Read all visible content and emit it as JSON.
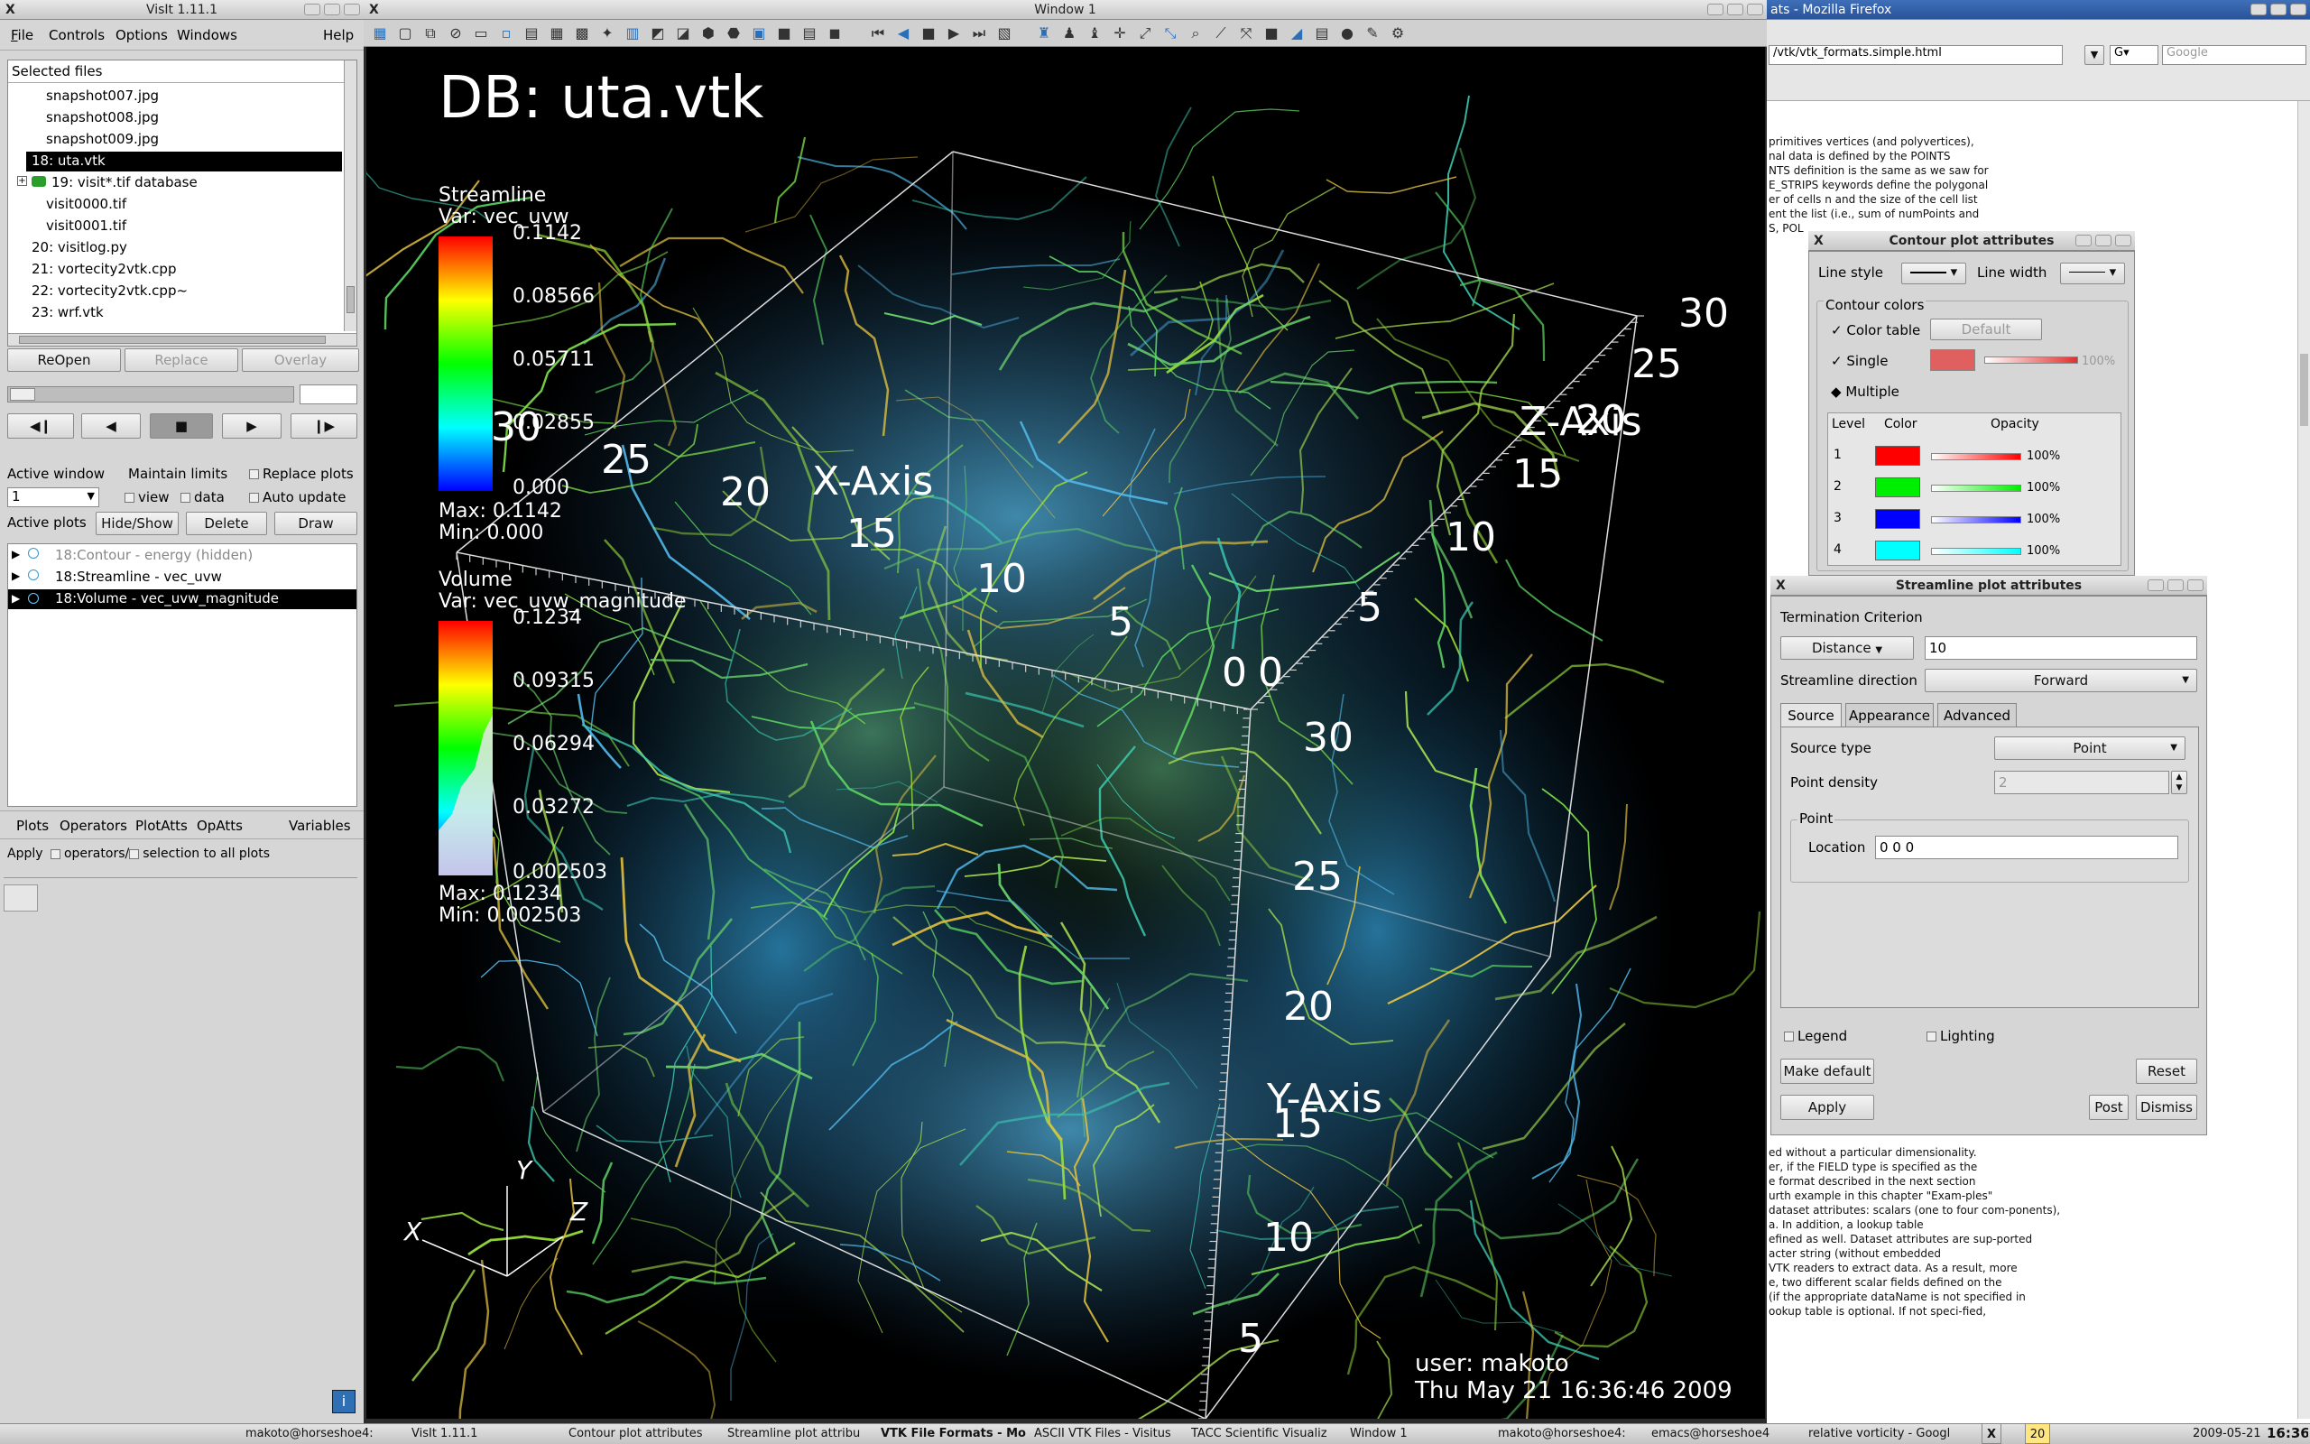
{
  "visit_main": {
    "title": "VisIt 1.11.1",
    "menu": [
      "File",
      "Controls",
      "Options",
      "Windows",
      "Help"
    ],
    "selected_files_label": "Selected files",
    "files": [
      "snapshot007.jpg",
      "snapshot008.jpg",
      "snapshot009.jpg",
      "18: uta.vtk",
      "19: visit*.tif database",
      "visit0000.tif",
      "visit0001.tif",
      "20: visitlog.py",
      "21: vortecity2vtk.cpp",
      "22: vortecity2vtk.cpp~",
      "23: wrf.vtk"
    ],
    "buttons": {
      "reopen": "ReOpen",
      "replace": "Replace",
      "overlay": "Overlay"
    },
    "active_window_label": "Active window",
    "active_window_value": "1",
    "maintain_limits": "Maintain limits",
    "view": "view",
    "data": "data",
    "replace_plots": "Replace plots",
    "auto_update": "Auto update",
    "active_plots_label": "Active plots",
    "hide_show": "Hide/Show",
    "delete": "Delete",
    "draw": "Draw",
    "plots": [
      "18:Contour - energy (hidden)",
      "18:Streamline - vec_uvw",
      "18:Volume - vec_uvw_magnitude"
    ],
    "bottom_tabs": [
      "Plots",
      "Operators",
      "PlotAtts",
      "OpAtts",
      "Variables"
    ],
    "apply_label": "Apply",
    "operators_label": "operators/",
    "selection_label": "selection to all plots"
  },
  "vis_window": {
    "title": "Window 1",
    "db": "DB: uta.vtk",
    "streamline": {
      "title": "Streamline",
      "var": "Var: vec_uvw",
      "ticks": [
        "0.1142",
        "0.08566",
        "0.05711",
        "0.02855",
        "0.000"
      ],
      "max": "Max:  0.1142",
      "min": "Min:  0.000"
    },
    "volume": {
      "title": "Volume",
      "var": "Var: vec_uvw_magnitude",
      "ticks": [
        "0.1234",
        "0.09315",
        "0.06294",
        "0.03272",
        "0.002503"
      ],
      "max": "Max:  0.1234",
      "min": "Min:  0.002503"
    },
    "axes": {
      "x": "X-Axis",
      "y": "Y-Axis",
      "z": "Z-Axis"
    },
    "x_ticks": [
      "30",
      "25",
      "20",
      "15",
      "10",
      "5",
      "0"
    ],
    "y_ticks": [
      "30",
      "25",
      "20",
      "15",
      "10",
      "5"
    ],
    "z_ticks": [
      "30",
      "25",
      "20",
      "15",
      "10",
      "5",
      "0"
    ],
    "triad": {
      "x": "X",
      "y": "Y",
      "z": "Z"
    },
    "user": "user: makoto",
    "date": "Thu May 21 16:36:46 2009"
  },
  "firefox": {
    "title": "ats - Mozilla Firefox",
    "url": "/vtk/vtk_formats.simple.html",
    "search": "Google",
    "lines_top": [
      "primitives vertices (and polyvertices),",
      "nal data is defined by the POINTS",
      "NTS  definition is the same as we saw for",
      "E_STRIPS  keywords define the polygonal",
      "er of cells n and the size of the cell list",
      "ent the list (i.e., sum of numPoints and",
      "S,  POL"
    ],
    "lines_bottom": [
      "ed without a particular dimensionality.",
      "er, if the FIELD type is specified as the",
      "e format described in the next section",
      "urth example in this chapter \"Exam-ples\"",
      "dataset attributes: scalars (one to four com-ponents),",
      "a. In addition, a lookup table",
      "efined as well. Dataset attributes are sup-ported",
      "acter string (without embedded",
      "VTK readers to extract data. As a result, more",
      "e, two different scalar fields defined on the",
      "(if the appropriate dataName is not specified in",
      "ookup table is optional. If not speci-fied,"
    ]
  },
  "contour": {
    "title": "Contour plot attributes",
    "line_style": "Line style",
    "line_width": "Line width",
    "contour_colors": "Contour colors",
    "color_table": "Color table",
    "default": "Default",
    "single": "Single",
    "single_pct": "100%",
    "multiple": "Multiple",
    "headers": [
      "Level",
      "Color",
      "Opacity"
    ],
    "levels": [
      {
        "n": "1",
        "color": "#ff0000",
        "pct": "100%"
      },
      {
        "n": "2",
        "color": "#00ee00",
        "pct": "100%"
      },
      {
        "n": "3",
        "color": "#0000ff",
        "pct": "100%"
      },
      {
        "n": "4",
        "color": "#00ffff",
        "pct": "100%"
      }
    ]
  },
  "streamline": {
    "title": "Streamline plot attributes",
    "termination": "Termination Criterion",
    "criterion": "Distance",
    "criterion_value": "10",
    "direction_label": "Streamline direction",
    "direction": "Forward",
    "tabs": [
      "Source",
      "Appearance",
      "Advanced"
    ],
    "source_type_label": "Source type",
    "source_type": "Point",
    "point_density_label": "Point density",
    "point_density": "2",
    "point_group": "Point",
    "location_label": "Location",
    "location": "0 0 0",
    "legend": "Legend",
    "lighting": "Lighting",
    "make_default": "Make default",
    "reset": "Reset",
    "apply": "Apply",
    "post": "Post",
    "dismiss": "Dismiss"
  },
  "taskbar": {
    "items": [
      "makoto@horseshoe4:",
      "VisIt 1.11.1",
      "Contour plot attributes",
      "Streamline plot attribu",
      "VTK File Formats - Mo",
      "ASCII VTK Files - Visitus",
      "TACC Scientific Visualiz",
      "Window 1",
      "makoto@horseshoe4:",
      "emacs@horseshoe4",
      "relative vorticity - Googl"
    ],
    "date": "2009-05-21",
    "time": "16:36",
    "counter": "20"
  }
}
